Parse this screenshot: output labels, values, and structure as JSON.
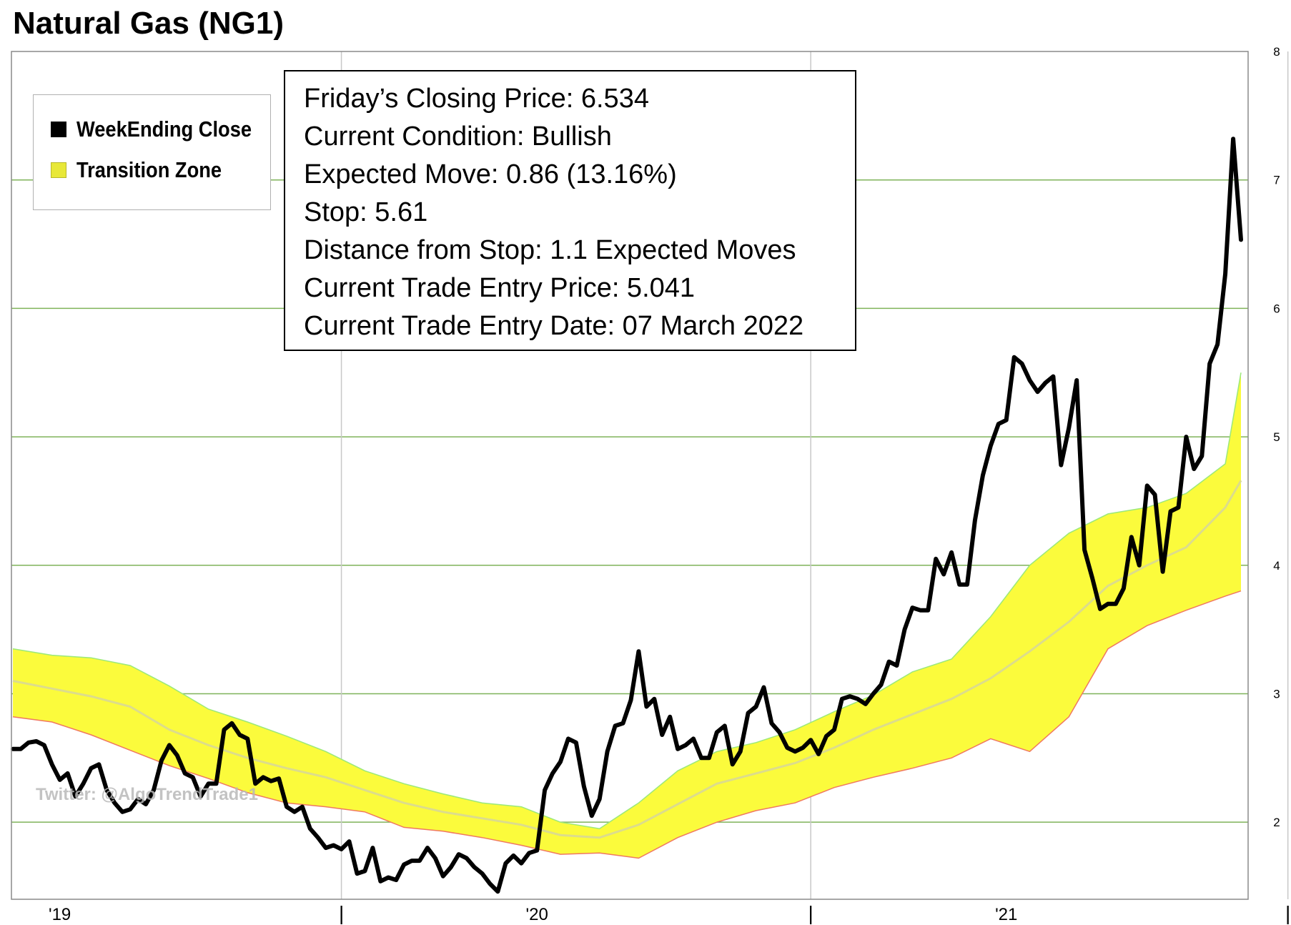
{
  "title": "Natural Gas (NG1)",
  "legend": {
    "items": [
      {
        "label": "WeekEnding Close",
        "color": "#000000"
      },
      {
        "label": "Transition Zone",
        "color": "#e8e838"
      }
    ]
  },
  "info": {
    "lines": [
      "Friday’s Closing Price: 6.534",
      "Current Condition: Bullish",
      "Expected Move: 0.86 (13.16%)",
      "Stop: 5.61",
      "Distance from Stop: 1.1 Expected Moves",
      "Current Trade Entry Price: 5.041",
      "Current Trade Entry Date: 07 March 2022"
    ]
  },
  "watermark": "Twitter: @AlgoTrendTrade1",
  "colors": {
    "zone_fill": "#fbfb3c",
    "zone_upper_edge": "#9be87a",
    "zone_lower_edge": "#f07860",
    "zone_mid": "#dcdc8c",
    "close_line": "#000000",
    "h_grid": "#7fb35a",
    "v_grid": "#c8c8c8"
  },
  "chart_data": {
    "type": "line",
    "title": "Natural Gas (NG1)",
    "ylim": [
      1.4,
      8.0
    ],
    "y_ticks": [
      2,
      3,
      4,
      5,
      6,
      7,
      8
    ],
    "xlim": [
      0,
      180
    ],
    "x_tick_labels": [
      {
        "label": "'19",
        "x": 6
      },
      {
        "label": "|",
        "x": 42
      },
      {
        "label": "'20",
        "x": 67
      },
      {
        "label": "|",
        "x": 102
      },
      {
        "label": "'21",
        "x": 127
      },
      {
        "label": "|",
        "x": 163
      }
    ],
    "v_gridlines": [
      42,
      102,
      163
    ],
    "grid": true,
    "legend_position": "top-left",
    "series": [
      {
        "name": "WeekEnding Close",
        "style": "line",
        "points": [
          [
            0,
            2.57
          ],
          [
            1,
            2.57
          ],
          [
            2,
            2.62
          ],
          [
            3,
            2.63
          ],
          [
            4,
            2.6
          ],
          [
            5,
            2.45
          ],
          [
            6,
            2.33
          ],
          [
            7,
            2.38
          ],
          [
            8,
            2.2
          ],
          [
            9,
            2.3
          ],
          [
            10,
            2.42
          ],
          [
            11,
            2.45
          ],
          [
            12,
            2.25
          ],
          [
            13,
            2.15
          ],
          [
            14,
            2.08
          ],
          [
            15,
            2.1
          ],
          [
            16,
            2.18
          ],
          [
            17,
            2.14
          ],
          [
            18,
            2.25
          ],
          [
            19,
            2.48
          ],
          [
            20,
            2.6
          ],
          [
            21,
            2.52
          ],
          [
            22,
            2.38
          ],
          [
            23,
            2.35
          ],
          [
            24,
            2.2
          ],
          [
            25,
            2.3
          ],
          [
            26,
            2.3
          ],
          [
            27,
            2.72
          ],
          [
            28,
            2.77
          ],
          [
            29,
            2.68
          ],
          [
            30,
            2.65
          ],
          [
            31,
            2.3
          ],
          [
            32,
            2.35
          ],
          [
            33,
            2.32
          ],
          [
            34,
            2.34
          ],
          [
            35,
            2.12
          ],
          [
            36,
            2.08
          ],
          [
            37,
            2.12
          ],
          [
            38,
            1.95
          ],
          [
            39,
            1.88
          ],
          [
            40,
            1.8
          ],
          [
            41,
            1.82
          ],
          [
            42,
            1.79
          ],
          [
            43,
            1.85
          ],
          [
            44,
            1.6
          ],
          [
            45,
            1.62
          ],
          [
            46,
            1.8
          ],
          [
            47,
            1.54
          ],
          [
            48,
            1.57
          ],
          [
            49,
            1.55
          ],
          [
            50,
            1.67
          ],
          [
            51,
            1.7
          ],
          [
            52,
            1.7
          ],
          [
            53,
            1.8
          ],
          [
            54,
            1.72
          ],
          [
            55,
            1.58
          ],
          [
            56,
            1.65
          ],
          [
            57,
            1.75
          ],
          [
            58,
            1.72
          ],
          [
            59,
            1.65
          ],
          [
            60,
            1.6
          ],
          [
            61,
            1.52
          ],
          [
            62,
            1.46
          ],
          [
            63,
            1.68
          ],
          [
            64,
            1.74
          ],
          [
            65,
            1.68
          ],
          [
            66,
            1.76
          ],
          [
            67,
            1.78
          ],
          [
            68,
            2.25
          ],
          [
            69,
            2.38
          ],
          [
            70,
            2.47
          ],
          [
            71,
            2.65
          ],
          [
            72,
            2.62
          ],
          [
            73,
            2.28
          ],
          [
            74,
            2.05
          ],
          [
            75,
            2.18
          ],
          [
            76,
            2.55
          ],
          [
            77,
            2.75
          ],
          [
            78,
            2.77
          ],
          [
            79,
            2.95
          ],
          [
            80,
            3.33
          ],
          [
            81,
            2.9
          ],
          [
            82,
            2.96
          ],
          [
            83,
            2.68
          ],
          [
            84,
            2.82
          ],
          [
            85,
            2.57
          ],
          [
            86,
            2.6
          ],
          [
            87,
            2.65
          ],
          [
            88,
            2.5
          ],
          [
            89,
            2.5
          ],
          [
            90,
            2.7
          ],
          [
            91,
            2.75
          ],
          [
            92,
            2.45
          ],
          [
            93,
            2.55
          ],
          [
            94,
            2.85
          ],
          [
            95,
            2.9
          ],
          [
            96,
            3.05
          ],
          [
            97,
            2.77
          ],
          [
            98,
            2.7
          ],
          [
            99,
            2.58
          ],
          [
            100,
            2.55
          ],
          [
            101,
            2.58
          ],
          [
            102,
            2.64
          ],
          [
            103,
            2.53
          ],
          [
            104,
            2.67
          ],
          [
            105,
            2.72
          ],
          [
            106,
            2.96
          ],
          [
            107,
            2.98
          ],
          [
            108,
            2.96
          ],
          [
            109,
            2.92
          ],
          [
            110,
            3.0
          ],
          [
            111,
            3.07
          ],
          [
            112,
            3.25
          ],
          [
            113,
            3.22
          ],
          [
            114,
            3.5
          ],
          [
            115,
            3.67
          ],
          [
            116,
            3.65
          ],
          [
            117,
            3.65
          ],
          [
            118,
            4.05
          ],
          [
            119,
            3.93
          ],
          [
            120,
            4.1
          ],
          [
            121,
            3.85
          ],
          [
            122,
            3.85
          ],
          [
            123,
            4.35
          ],
          [
            124,
            4.7
          ],
          [
            125,
            4.93
          ],
          [
            126,
            5.1
          ],
          [
            127,
            5.13
          ],
          [
            128,
            5.62
          ],
          [
            129,
            5.57
          ],
          [
            130,
            5.44
          ],
          [
            131,
            5.35
          ],
          [
            132,
            5.42
          ],
          [
            133,
            5.47
          ],
          [
            134,
            4.78
          ],
          [
            135,
            5.07
          ],
          [
            136,
            5.44
          ],
          [
            137,
            4.12
          ],
          [
            138,
            3.9
          ],
          [
            139,
            3.66
          ],
          [
            140,
            3.7
          ],
          [
            141,
            3.7
          ],
          [
            142,
            3.82
          ],
          [
            143,
            4.22
          ],
          [
            144,
            4.0
          ],
          [
            145,
            4.62
          ],
          [
            146,
            4.55
          ],
          [
            147,
            3.95
          ],
          [
            148,
            4.42
          ],
          [
            149,
            4.45
          ],
          [
            150,
            5.0
          ],
          [
            151,
            4.75
          ],
          [
            152,
            4.85
          ],
          [
            153,
            5.57
          ],
          [
            154,
            5.72
          ],
          [
            155,
            6.27
          ],
          [
            156,
            7.32
          ],
          [
            157,
            6.534
          ]
        ]
      },
      {
        "name": "Transition Zone",
        "style": "band",
        "x": [
          0,
          5,
          10,
          15,
          20,
          25,
          30,
          35,
          40,
          45,
          50,
          55,
          60,
          65,
          70,
          75,
          80,
          85,
          90,
          95,
          100,
          105,
          110,
          115,
          120,
          125,
          130,
          135,
          140,
          145,
          150,
          155,
          157
        ],
        "upper": [
          3.35,
          3.3,
          3.28,
          3.22,
          3.06,
          2.88,
          2.78,
          2.67,
          2.55,
          2.4,
          2.3,
          2.22,
          2.15,
          2.12,
          2.0,
          1.95,
          2.15,
          2.4,
          2.55,
          2.62,
          2.72,
          2.86,
          2.99,
          3.17,
          3.27,
          3.6,
          4.0,
          4.25,
          4.4,
          4.45,
          4.56,
          4.79,
          5.5
        ],
        "lower": [
          2.82,
          2.78,
          2.68,
          2.56,
          2.44,
          2.34,
          2.23,
          2.15,
          2.12,
          2.08,
          1.96,
          1.93,
          1.88,
          1.82,
          1.75,
          1.76,
          1.72,
          1.88,
          2.0,
          2.09,
          2.15,
          2.27,
          2.35,
          2.42,
          2.5,
          2.65,
          2.55,
          2.82,
          3.35,
          3.53,
          3.65,
          3.76,
          3.8
        ],
        "mid": [
          3.1,
          3.04,
          2.98,
          2.9,
          2.72,
          2.6,
          2.5,
          2.42,
          2.35,
          2.25,
          2.15,
          2.08,
          2.03,
          1.98,
          1.9,
          1.88,
          1.98,
          2.14,
          2.3,
          2.38,
          2.46,
          2.58,
          2.72,
          2.84,
          2.96,
          3.12,
          3.33,
          3.56,
          3.84,
          4.0,
          4.14,
          4.45,
          4.66
        ]
      }
    ]
  }
}
